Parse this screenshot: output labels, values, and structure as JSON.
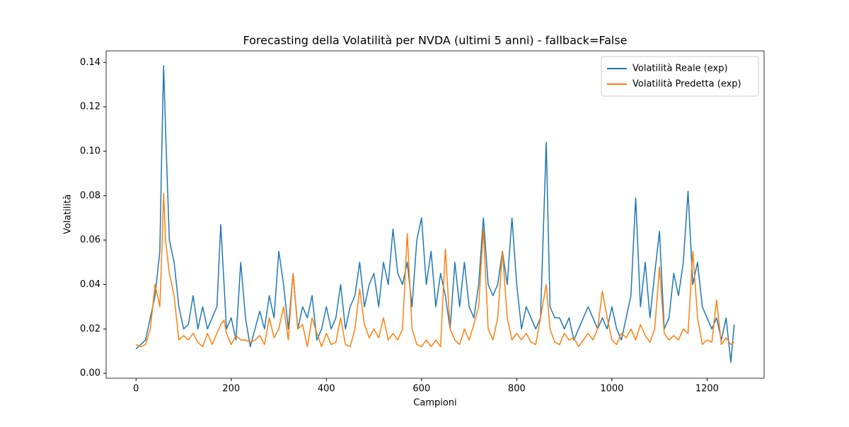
{
  "chart_data": {
    "type": "line",
    "title": "Forecasting della Volatilità per NVDA (ultimi 5 anni) - fallback=False",
    "xlabel": "Campioni",
    "ylabel": "Volatilità",
    "x": [
      0,
      10,
      20,
      30,
      40,
      50,
      55,
      58,
      62,
      70,
      80,
      90,
      100,
      110,
      120,
      130,
      140,
      150,
      160,
      170,
      178,
      185,
      190,
      200,
      210,
      220,
      230,
      240,
      250,
      260,
      270,
      280,
      290,
      300,
      310,
      320,
      330,
      340,
      350,
      360,
      370,
      380,
      390,
      400,
      410,
      420,
      430,
      440,
      450,
      460,
      470,
      480,
      490,
      500,
      510,
      520,
      530,
      540,
      550,
      560,
      570,
      580,
      590,
      600,
      610,
      620,
      630,
      640,
      650,
      660,
      670,
      680,
      690,
      700,
      710,
      720,
      730,
      740,
      750,
      760,
      770,
      780,
      790,
      800,
      810,
      820,
      830,
      840,
      850,
      862,
      870,
      880,
      890,
      900,
      910,
      920,
      930,
      940,
      950,
      960,
      970,
      980,
      990,
      1000,
      1010,
      1020,
      1030,
      1040,
      1050,
      1060,
      1070,
      1080,
      1090,
      1100,
      1110,
      1120,
      1130,
      1140,
      1150,
      1160,
      1170,
      1180,
      1190,
      1200,
      1210,
      1220,
      1230,
      1240,
      1250,
      1257
    ],
    "series": [
      {
        "name": "Volatilità Reale (exp)",
        "color": "#1f77b4",
        "values": [
          0.011,
          0.013,
          0.015,
          0.025,
          0.035,
          0.055,
          0.11,
          0.1385,
          0.11,
          0.06,
          0.05,
          0.03,
          0.02,
          0.022,
          0.035,
          0.02,
          0.03,
          0.02,
          0.025,
          0.03,
          0.067,
          0.04,
          0.02,
          0.025,
          0.015,
          0.05,
          0.025,
          0.012,
          0.02,
          0.028,
          0.02,
          0.035,
          0.025,
          0.055,
          0.04,
          0.02,
          0.045,
          0.02,
          0.03,
          0.025,
          0.035,
          0.015,
          0.02,
          0.03,
          0.02,
          0.025,
          0.04,
          0.02,
          0.03,
          0.035,
          0.05,
          0.03,
          0.04,
          0.045,
          0.03,
          0.05,
          0.04,
          0.065,
          0.045,
          0.04,
          0.05,
          0.03,
          0.06,
          0.07,
          0.04,
          0.055,
          0.03,
          0.045,
          0.035,
          0.02,
          0.05,
          0.03,
          0.05,
          0.03,
          0.025,
          0.04,
          0.07,
          0.04,
          0.035,
          0.04,
          0.055,
          0.04,
          0.07,
          0.04,
          0.02,
          0.03,
          0.025,
          0.02,
          0.025,
          0.104,
          0.03,
          0.025,
          0.025,
          0.02,
          0.025,
          0.015,
          0.02,
          0.025,
          0.03,
          0.025,
          0.02,
          0.025,
          0.02,
          0.03,
          0.02,
          0.015,
          0.025,
          0.035,
          0.079,
          0.03,
          0.05,
          0.025,
          0.045,
          0.064,
          0.02,
          0.025,
          0.045,
          0.035,
          0.05,
          0.082,
          0.04,
          0.05,
          0.03,
          0.025,
          0.02,
          0.025,
          0.015,
          0.025,
          0.005,
          0.022
        ]
      },
      {
        "name": "Volatilità Predetta (exp)",
        "color": "#ff7f0e",
        "values": [
          0.013,
          0.012,
          0.013,
          0.02,
          0.04,
          0.03,
          0.06,
          0.081,
          0.06,
          0.045,
          0.035,
          0.015,
          0.017,
          0.015,
          0.018,
          0.014,
          0.012,
          0.018,
          0.013,
          0.018,
          0.022,
          0.024,
          0.018,
          0.013,
          0.017,
          0.015,
          0.015,
          0.014,
          0.015,
          0.017,
          0.013,
          0.025,
          0.016,
          0.02,
          0.03,
          0.015,
          0.045,
          0.02,
          0.022,
          0.012,
          0.025,
          0.018,
          0.012,
          0.018,
          0.013,
          0.014,
          0.025,
          0.013,
          0.012,
          0.02,
          0.038,
          0.022,
          0.016,
          0.02,
          0.016,
          0.025,
          0.015,
          0.018,
          0.015,
          0.02,
          0.063,
          0.02,
          0.013,
          0.012,
          0.015,
          0.012,
          0.015,
          0.012,
          0.056,
          0.02,
          0.015,
          0.013,
          0.02,
          0.015,
          0.022,
          0.03,
          0.065,
          0.02,
          0.015,
          0.025,
          0.055,
          0.025,
          0.015,
          0.018,
          0.015,
          0.018,
          0.014,
          0.013,
          0.025,
          0.04,
          0.02,
          0.014,
          0.013,
          0.018,
          0.015,
          0.016,
          0.012,
          0.015,
          0.018,
          0.015,
          0.02,
          0.037,
          0.025,
          0.015,
          0.013,
          0.018,
          0.016,
          0.02,
          0.015,
          0.022,
          0.017,
          0.014,
          0.02,
          0.048,
          0.018,
          0.015,
          0.017,
          0.015,
          0.02,
          0.018,
          0.055,
          0.025,
          0.013,
          0.015,
          0.014,
          0.033,
          0.013,
          0.016,
          0.013,
          0.014
        ]
      }
    ],
    "xlim": [
      -62.85,
      1319.85
    ],
    "ylim": [
      -0.0022,
      0.1452
    ],
    "xticks": [
      0,
      200,
      400,
      600,
      800,
      1000,
      1200
    ],
    "yticks": [
      {
        "value": 0,
        "label": "0.00"
      },
      {
        "value": 0.02,
        "label": "0.02"
      },
      {
        "value": 0.04,
        "label": "0.04"
      },
      {
        "value": 0.06,
        "label": "0.06"
      },
      {
        "value": 0.08,
        "label": "0.08"
      },
      {
        "value": 0.1,
        "label": "0.10"
      },
      {
        "value": 0.12,
        "label": "0.12"
      },
      {
        "value": 0.14,
        "label": "0.14"
      }
    ],
    "grid": false,
    "legend": "upper right"
  }
}
